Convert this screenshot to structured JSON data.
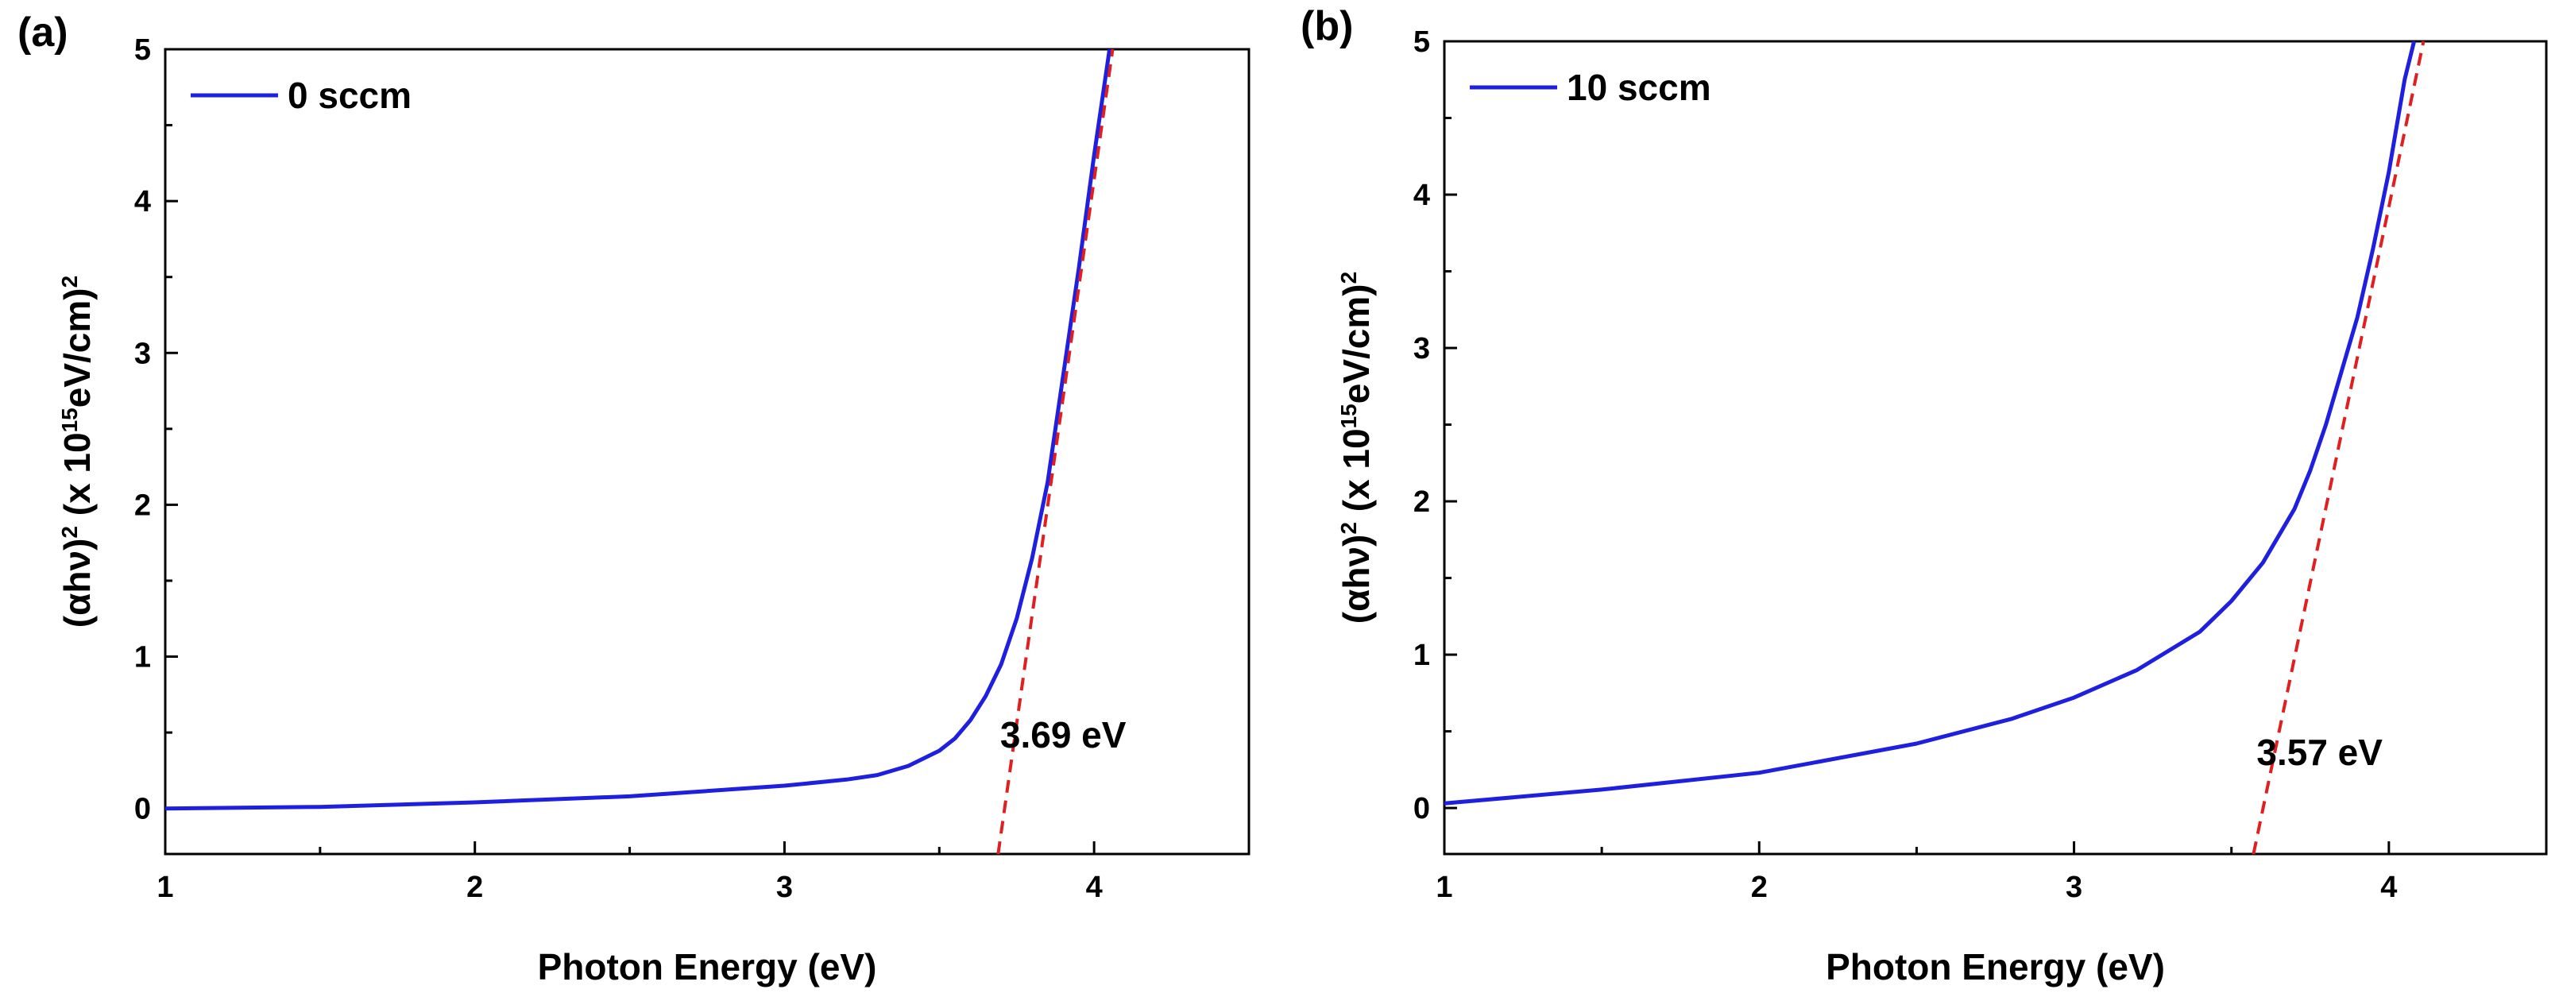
{
  "chart_data": [
    {
      "panel_label": "(a)",
      "type": "line",
      "xlabel": "Photon Energy (eV)",
      "ylabel": {
        "pre": "(αhν)",
        "sup1": "2",
        "mid": " (x 10",
        "sup2": "15",
        "post": "eV/cm)",
        "sup3": "2"
      },
      "xlim": [
        1,
        4.5
      ],
      "ylim": [
        -0.3,
        5
      ],
      "xticks": [
        1,
        2,
        3,
        4
      ],
      "yticks": [
        0,
        1,
        2,
        3,
        4,
        5
      ],
      "legend": {
        "label": "0 sccm",
        "color": "#1f1fe0",
        "position": "top-left"
      },
      "series": [
        {
          "name": "0 sccm",
          "color": "#1f1fe0",
          "x": [
            1.0,
            1.5,
            2.0,
            2.5,
            3.0,
            3.2,
            3.3,
            3.4,
            3.5,
            3.55,
            3.6,
            3.65,
            3.7,
            3.75,
            3.8,
            3.85,
            3.9,
            3.95,
            4.0,
            4.05
          ],
          "y": [
            0.0,
            0.01,
            0.04,
            0.08,
            0.15,
            0.19,
            0.22,
            0.28,
            0.38,
            0.46,
            0.58,
            0.74,
            0.95,
            1.25,
            1.65,
            2.15,
            2.85,
            3.55,
            4.3,
            5.0
          ]
        }
      ],
      "fit_line": {
        "color": "#e02020",
        "x": [
          3.69,
          4.06
        ],
        "y": [
          -0.3,
          5.0
        ]
      },
      "annotation": {
        "text": "3.69 eV",
        "x": 3.9,
        "y": 0.4
      }
    },
    {
      "panel_label": "(b)",
      "type": "line",
      "xlabel": "Photon Energy (eV)",
      "ylabel": {
        "pre": "(αhν)",
        "sup1": "2",
        "mid": " (x 10",
        "sup2": "15",
        "post": "eV/cm)",
        "sup3": "2"
      },
      "xlim": [
        1,
        4.5
      ],
      "ylim": [
        -0.3,
        5
      ],
      "xticks": [
        1,
        2,
        3,
        4
      ],
      "yticks": [
        0,
        1,
        2,
        3,
        4,
        5
      ],
      "legend": {
        "label": "10 sccm",
        "color": "#1f1fe0",
        "position": "top-left"
      },
      "series": [
        {
          "name": "10 sccm",
          "color": "#1f1fe0",
          "x": [
            1.0,
            1.5,
            2.0,
            2.5,
            2.8,
            3.0,
            3.2,
            3.4,
            3.5,
            3.6,
            3.7,
            3.75,
            3.8,
            3.85,
            3.9,
            3.95,
            4.0,
            4.05,
            4.08
          ],
          "y": [
            0.03,
            0.12,
            0.23,
            0.42,
            0.58,
            0.72,
            0.9,
            1.15,
            1.35,
            1.6,
            1.95,
            2.2,
            2.5,
            2.85,
            3.2,
            3.65,
            4.15,
            4.75,
            5.0
          ]
        }
      ],
      "fit_line": {
        "color": "#e02020",
        "x": [
          3.57,
          4.11
        ],
        "y": [
          -0.3,
          5.0
        ]
      },
      "annotation": {
        "text": "3.57 eV",
        "x": 3.78,
        "y": 0.28
      }
    }
  ]
}
